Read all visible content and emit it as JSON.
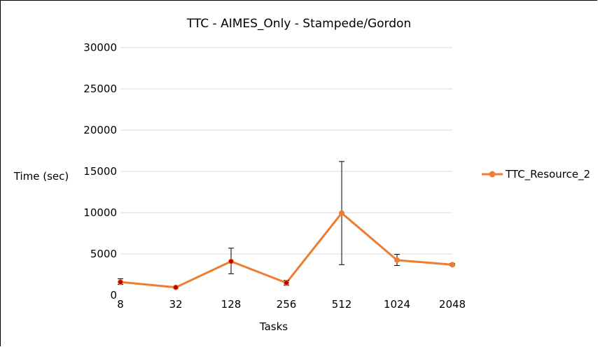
{
  "chart_data": {
    "type": "line",
    "title": "TTC - AIMES_Only - Stampede/Gordon",
    "xlabel": "Tasks",
    "ylabel": "Time (sec)",
    "categories": [
      "8",
      "32",
      "128",
      "256",
      "512",
      "1024",
      "2048"
    ],
    "ylim": [
      0,
      30000
    ],
    "yticks": [
      0,
      5000,
      10000,
      15000,
      20000,
      25000,
      30000
    ],
    "grid": true,
    "legend_position": "right",
    "series": [
      {
        "name": "TTC_Resource_2",
        "color": "#ed7d31",
        "marker_color": "#ed7d31",
        "values": [
          1600,
          950,
          4100,
          1500,
          9950,
          4250,
          3700
        ],
        "error_low": [
          1300,
          850,
          2600,
          1200,
          3700,
          3600,
          3600
        ],
        "error_high": [
          2000,
          1050,
          5700,
          1800,
          16200,
          4950,
          3850
        ]
      }
    ],
    "highlighted_point_color": "#c00000",
    "highlighted_points": [
      0,
      1,
      2,
      3
    ]
  }
}
